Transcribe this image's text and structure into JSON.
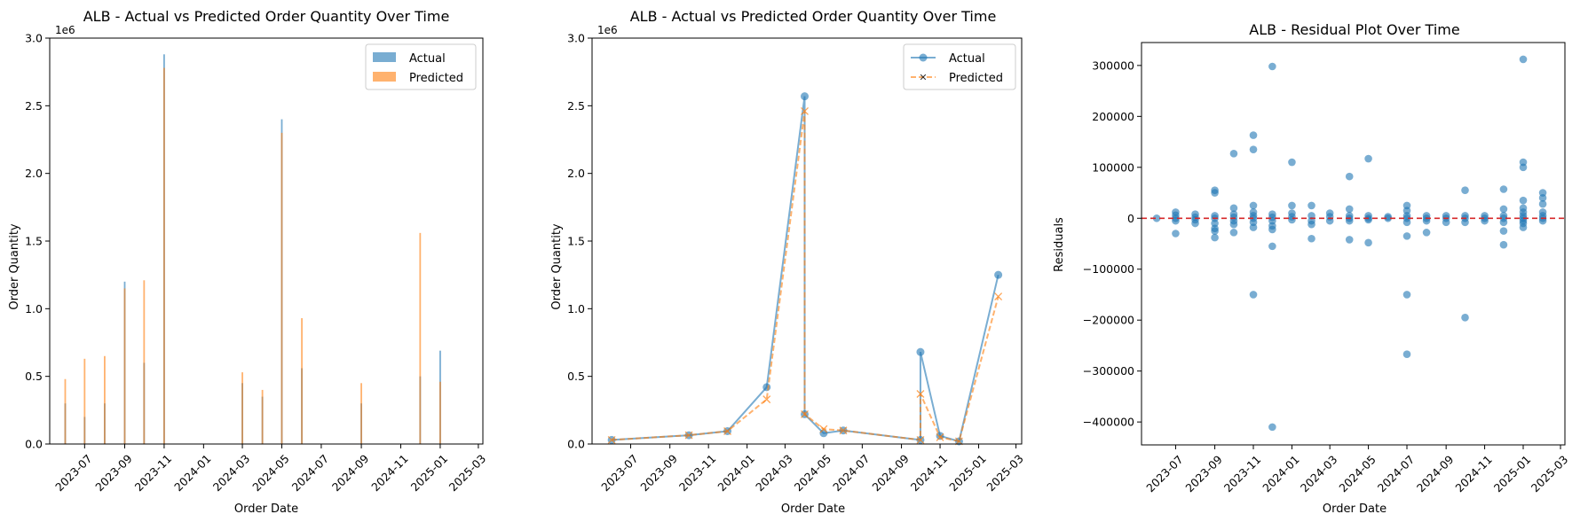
{
  "chart_data": [
    {
      "type": "bar",
      "title": "ALB - Actual vs Predicted Order Quantity Over Time",
      "xlabel": "Order Date",
      "ylabel": "Order Quantity",
      "y_offset_label": "1e6",
      "ylim": [
        0,
        3.0
      ],
      "y_ticks": [
        "0.0",
        "0.5",
        "1.0",
        "1.5",
        "2.0",
        "2.5",
        "3.0"
      ],
      "x_ticks": [
        "2023-07",
        "2023-09",
        "2023-11",
        "2024-01",
        "2024-03",
        "2024-05",
        "2024-07",
        "2024-09",
        "2024-11",
        "2025-01",
        "2025-03"
      ],
      "xlim": [
        "2023-05-08",
        "2025-03-08"
      ],
      "legend_position": "top-right",
      "colors": {
        "Actual": "#1f77b4",
        "Predicted": "#ff7f0e"
      },
      "x": [
        "2023-06-01",
        "2023-07-01",
        "2023-08-01",
        "2023-09-01",
        "2023-10-01",
        "2023-11-01",
        "2024-03-01",
        "2024-04-01",
        "2024-05-01",
        "2024-06-01",
        "2024-09-01",
        "2024-12-01",
        "2025-01-01"
      ],
      "series": [
        {
          "name": "Actual",
          "values": [
            0.3,
            0.2,
            0.3,
            1.2,
            0.6,
            2.88,
            0.45,
            0.35,
            2.4,
            0.56,
            0.3,
            0.5,
            0.69
          ]
        },
        {
          "name": "Predicted",
          "values": [
            0.48,
            0.63,
            0.65,
            1.15,
            1.21,
            2.78,
            0.53,
            0.4,
            2.3,
            0.93,
            0.45,
            1.56,
            0.46
          ]
        }
      ]
    },
    {
      "type": "line",
      "title": "ALB - Actual vs Predicted Order Quantity Over Time",
      "xlabel": "Order Date",
      "ylabel": "Order Quantity",
      "y_offset_label": "1e6",
      "ylim": [
        0,
        3.0
      ],
      "y_ticks": [
        "0.0",
        "0.5",
        "1.0",
        "1.5",
        "2.0",
        "2.5",
        "3.0"
      ],
      "x_ticks": [
        "2023-07",
        "2023-09",
        "2023-11",
        "2024-01",
        "2024-03",
        "2024-05",
        "2024-07",
        "2024-09",
        "2024-11",
        "2025-01",
        "2025-03"
      ],
      "xlim": [
        "2023-05-01",
        "2025-03-10"
      ],
      "legend_position": "top-right",
      "colors": {
        "Actual": "#1f77b4",
        "Predicted": "#ff7f0e"
      },
      "x": [
        "2023-06-01",
        "2023-10-01",
        "2023-12-01",
        "2024-02-01",
        "2024-04-01",
        "2024-04-01",
        "2024-05-01",
        "2024-06-01",
        "2024-10-01",
        "2024-10-01",
        "2024-11-01",
        "2024-12-01",
        "2025-02-01"
      ],
      "series": [
        {
          "name": "Actual",
          "values": [
            0.03,
            0.065,
            0.095,
            0.42,
            2.57,
            0.22,
            0.08,
            0.1,
            0.03,
            0.68,
            0.06,
            0.02,
            1.25
          ]
        },
        {
          "name": "Predicted",
          "values": [
            0.03,
            0.065,
            0.095,
            0.33,
            2.46,
            0.22,
            0.11,
            0.1,
            0.03,
            0.37,
            0.05,
            0.02,
            1.09
          ]
        }
      ]
    },
    {
      "type": "scatter",
      "title": "ALB - Residual Plot Over Time",
      "xlabel": "Order Date",
      "ylabel": "Residuals",
      "ylim": [
        -445000,
        345000
      ],
      "y_ticks": [
        "300000",
        "200000",
        "100000",
        "0",
        "−100000",
        "−200000",
        "−300000",
        "−400000"
      ],
      "x_ticks": [
        "2023-07",
        "2023-09",
        "2023-11",
        "2024-01",
        "2024-03",
        "2024-05",
        "2024-07",
        "2024-09",
        "2024-11",
        "2025-01",
        "2025-03"
      ],
      "xlim": [
        "2023-05-08",
        "2025-03-08"
      ],
      "reference_line": {
        "y": 0,
        "color": "#d62728",
        "style": "dashed"
      },
      "colors": {
        "points": "#1f77b4"
      },
      "points": [
        {
          "x": "2023-06-01",
          "y": 0
        },
        {
          "x": "2023-07-01",
          "y": 12000
        },
        {
          "x": "2023-07-01",
          "y": 6000
        },
        {
          "x": "2023-07-01",
          "y": 0
        },
        {
          "x": "2023-07-01",
          "y": -5000
        },
        {
          "x": "2023-07-01",
          "y": -30000
        },
        {
          "x": "2023-08-01",
          "y": 8000
        },
        {
          "x": "2023-08-01",
          "y": 2000
        },
        {
          "x": "2023-08-01",
          "y": -3000
        },
        {
          "x": "2023-08-01",
          "y": -10000
        },
        {
          "x": "2023-09-01",
          "y": 55000
        },
        {
          "x": "2023-09-01",
          "y": 50000
        },
        {
          "x": "2023-09-01",
          "y": 5000
        },
        {
          "x": "2023-09-01",
          "y": 0
        },
        {
          "x": "2023-09-01",
          "y": -10000
        },
        {
          "x": "2023-09-01",
          "y": -20000
        },
        {
          "x": "2023-09-01",
          "y": -25000
        },
        {
          "x": "2023-09-01",
          "y": -38000
        },
        {
          "x": "2023-10-01",
          "y": 127000
        },
        {
          "x": "2023-10-01",
          "y": 20000
        },
        {
          "x": "2023-10-01",
          "y": 8000
        },
        {
          "x": "2023-10-01",
          "y": 2000
        },
        {
          "x": "2023-10-01",
          "y": -5000
        },
        {
          "x": "2023-10-01",
          "y": -12000
        },
        {
          "x": "2023-10-01",
          "y": -28000
        },
        {
          "x": "2023-11-01",
          "y": 163000
        },
        {
          "x": "2023-11-01",
          "y": 135000
        },
        {
          "x": "2023-11-01",
          "y": 25000
        },
        {
          "x": "2023-11-01",
          "y": 12000
        },
        {
          "x": "2023-11-01",
          "y": 5000
        },
        {
          "x": "2023-11-01",
          "y": 0
        },
        {
          "x": "2023-11-01",
          "y": -8000
        },
        {
          "x": "2023-11-01",
          "y": -18000
        },
        {
          "x": "2023-11-01",
          "y": -150000
        },
        {
          "x": "2023-12-01",
          "y": 298000
        },
        {
          "x": "2023-12-01",
          "y": 8000
        },
        {
          "x": "2023-12-01",
          "y": 2000
        },
        {
          "x": "2023-12-01",
          "y": -5000
        },
        {
          "x": "2023-12-01",
          "y": -15000
        },
        {
          "x": "2023-12-01",
          "y": -22000
        },
        {
          "x": "2023-12-01",
          "y": -55000
        },
        {
          "x": "2023-12-01",
          "y": -410000
        },
        {
          "x": "2024-01-01",
          "y": 110000
        },
        {
          "x": "2024-01-01",
          "y": 25000
        },
        {
          "x": "2024-01-01",
          "y": 10000
        },
        {
          "x": "2024-01-01",
          "y": 3000
        },
        {
          "x": "2024-01-01",
          "y": -3000
        },
        {
          "x": "2024-02-01",
          "y": 25000
        },
        {
          "x": "2024-02-01",
          "y": 5000
        },
        {
          "x": "2024-02-01",
          "y": -5000
        },
        {
          "x": "2024-02-01",
          "y": -12000
        },
        {
          "x": "2024-02-01",
          "y": -40000
        },
        {
          "x": "2024-03-01",
          "y": 10000
        },
        {
          "x": "2024-03-01",
          "y": 3000
        },
        {
          "x": "2024-03-01",
          "y": -5000
        },
        {
          "x": "2024-04-01",
          "y": 82000
        },
        {
          "x": "2024-04-01",
          "y": 18000
        },
        {
          "x": "2024-04-01",
          "y": 5000
        },
        {
          "x": "2024-04-01",
          "y": 0
        },
        {
          "x": "2024-04-01",
          "y": -5000
        },
        {
          "x": "2024-04-01",
          "y": -42000
        },
        {
          "x": "2024-05-01",
          "y": 117000
        },
        {
          "x": "2024-05-01",
          "y": 5000
        },
        {
          "x": "2024-05-01",
          "y": 0
        },
        {
          "x": "2024-05-01",
          "y": -3000
        },
        {
          "x": "2024-05-01",
          "y": -48000
        },
        {
          "x": "2024-06-01",
          "y": 3000
        },
        {
          "x": "2024-06-01",
          "y": 0
        },
        {
          "x": "2024-07-01",
          "y": 25000
        },
        {
          "x": "2024-07-01",
          "y": 15000
        },
        {
          "x": "2024-07-01",
          "y": 5000
        },
        {
          "x": "2024-07-01",
          "y": 0
        },
        {
          "x": "2024-07-01",
          "y": -8000
        },
        {
          "x": "2024-07-01",
          "y": -35000
        },
        {
          "x": "2024-07-01",
          "y": -150000
        },
        {
          "x": "2024-07-01",
          "y": -267000
        },
        {
          "x": "2024-08-01",
          "y": 5000
        },
        {
          "x": "2024-08-01",
          "y": 0
        },
        {
          "x": "2024-08-01",
          "y": -5000
        },
        {
          "x": "2024-08-01",
          "y": -28000
        },
        {
          "x": "2024-09-01",
          "y": 5000
        },
        {
          "x": "2024-09-01",
          "y": 0
        },
        {
          "x": "2024-09-01",
          "y": -8000
        },
        {
          "x": "2024-10-01",
          "y": 55000
        },
        {
          "x": "2024-10-01",
          "y": 5000
        },
        {
          "x": "2024-10-01",
          "y": 0
        },
        {
          "x": "2024-10-01",
          "y": -8000
        },
        {
          "x": "2024-10-01",
          "y": -195000
        },
        {
          "x": "2024-11-01",
          "y": 5000
        },
        {
          "x": "2024-11-01",
          "y": 0
        },
        {
          "x": "2024-11-01",
          "y": -5000
        },
        {
          "x": "2024-12-01",
          "y": 57000
        },
        {
          "x": "2024-12-01",
          "y": 18000
        },
        {
          "x": "2024-12-01",
          "y": 5000
        },
        {
          "x": "2024-12-01",
          "y": 0
        },
        {
          "x": "2024-12-01",
          "y": -8000
        },
        {
          "x": "2024-12-01",
          "y": -25000
        },
        {
          "x": "2024-12-01",
          "y": -52000
        },
        {
          "x": "2025-01-01",
          "y": 312000
        },
        {
          "x": "2025-01-01",
          "y": 110000
        },
        {
          "x": "2025-01-01",
          "y": 100000
        },
        {
          "x": "2025-01-01",
          "y": 35000
        },
        {
          "x": "2025-01-01",
          "y": 20000
        },
        {
          "x": "2025-01-01",
          "y": 12000
        },
        {
          "x": "2025-01-01",
          "y": 5000
        },
        {
          "x": "2025-01-01",
          "y": 0
        },
        {
          "x": "2025-01-01",
          "y": -5000
        },
        {
          "x": "2025-01-01",
          "y": -10000
        },
        {
          "x": "2025-01-01",
          "y": -18000
        },
        {
          "x": "2025-02-01",
          "y": 50000
        },
        {
          "x": "2025-02-01",
          "y": 40000
        },
        {
          "x": "2025-02-01",
          "y": 28000
        },
        {
          "x": "2025-02-01",
          "y": 12000
        },
        {
          "x": "2025-02-01",
          "y": 5000
        },
        {
          "x": "2025-02-01",
          "y": 0
        },
        {
          "x": "2025-02-01",
          "y": -5000
        }
      ]
    }
  ]
}
